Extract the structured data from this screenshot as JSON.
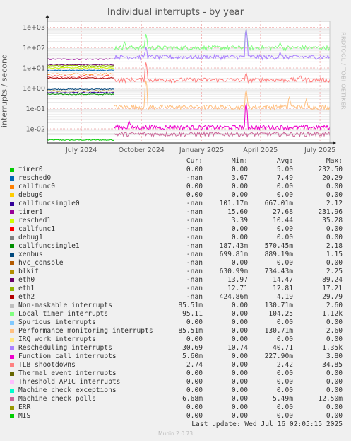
{
  "title": "Individual interrupts - by year",
  "side_label": "RRDTOOL / TOBI OETIKER",
  "footer": {
    "last_update": "Last update: Wed Jul 16 02:05:15 2025",
    "version": "Munin 2.0.73"
  },
  "chart_data": {
    "type": "line",
    "ylabel": "interrupts / second",
    "yscale": "log",
    "ylim": [
      0.002,
      2000
    ],
    "yticks": [
      {
        "value": 0.01,
        "label": "1e-02"
      },
      {
        "value": 0.1,
        "label": "1e-01"
      },
      {
        "value": 1,
        "label": "1e+00"
      },
      {
        "value": 10,
        "label": "1e+01"
      },
      {
        "value": 100,
        "label": "1e+02"
      },
      {
        "value": 1000,
        "label": "1e+03"
      }
    ],
    "xlim": [
      "2024-05-10",
      "2025-07-16"
    ],
    "xticks": [
      {
        "date": "2024-07-01",
        "label": "July 2024"
      },
      {
        "date": "2024-10-01",
        "label": "October 2024"
      },
      {
        "date": "2025-01-01",
        "label": "January 2025"
      },
      {
        "date": "2025-04-01",
        "label": "April 2025"
      },
      {
        "date": "2025-07-01",
        "label": "July 2025"
      }
    ],
    "change_date": "2024-08-20",
    "grid": true,
    "legend_position": "bottom",
    "columns": [
      "Cur:",
      "Min:",
      "Avg:",
      "Max:"
    ],
    "series": [
      {
        "name": "timer0",
        "color": "#00cc00",
        "cur": "0.00",
        "min": "0.00",
        "avg": "5.00",
        "max": "232.50",
        "early": 0.0028,
        "late": null,
        "spikes": []
      },
      {
        "name": "resched0",
        "color": "#0066b3",
        "cur": "-nan",
        "min": "3.67",
        "avg": "7.49",
        "max": "20.29",
        "early": 7.5,
        "late": null,
        "spikes": []
      },
      {
        "name": "callfunc0",
        "color": "#ff8000",
        "cur": "0.00",
        "min": "0.00",
        "avg": "0.00",
        "max": "0.00",
        "early": 5,
        "late": null,
        "spikes": []
      },
      {
        "name": "debug0",
        "color": "#ffcc00",
        "cur": "0.00",
        "min": "0.00",
        "avg": "0.00",
        "max": "0.00",
        "early": null,
        "late": null,
        "spikes": []
      },
      {
        "name": "callfuncsingle0",
        "color": "#330099",
        "cur": "-nan",
        "min": "101.17m",
        "avg": "667.01m",
        "max": "2.12",
        "early": 0.6,
        "late": null,
        "spikes": []
      },
      {
        "name": "timer1",
        "color": "#990099",
        "cur": "-nan",
        "min": "15.60",
        "avg": "27.68",
        "max": "231.96",
        "early": 27,
        "late": null,
        "spikes": []
      },
      {
        "name": "resched1",
        "color": "#ccff00",
        "cur": "-nan",
        "min": "3.39",
        "avg": "10.44",
        "max": "35.28",
        "early": 10,
        "late": null,
        "spikes": []
      },
      {
        "name": "callfunc1",
        "color": "#ff0000",
        "cur": "-nan",
        "min": "0.00",
        "avg": "0.00",
        "max": "0.00",
        "early": 4,
        "late": null,
        "spikes": []
      },
      {
        "name": "debug1",
        "color": "#808080",
        "cur": "-nan",
        "min": "0.00",
        "avg": "0.00",
        "max": "0.00",
        "early": null,
        "late": null,
        "spikes": []
      },
      {
        "name": "callfuncsingle1",
        "color": "#008f00",
        "cur": "-nan",
        "min": "187.43m",
        "avg": "570.45m",
        "max": "2.18",
        "early": 0.5,
        "late": null,
        "spikes": []
      },
      {
        "name": "xenbus",
        "color": "#00487d",
        "cur": "-nan",
        "min": "699.81m",
        "avg": "889.19m",
        "max": "1.15",
        "early": 0.89,
        "late": null,
        "spikes": []
      },
      {
        "name": "hvc_console",
        "color": "#b35a00",
        "cur": "-nan",
        "min": "0.00",
        "avg": "0.00",
        "max": "0.00",
        "early": null,
        "late": null,
        "spikes": []
      },
      {
        "name": "blkif",
        "color": "#b38f00",
        "cur": "-nan",
        "min": "630.99m",
        "avg": "734.43m",
        "max": "2.25",
        "early": 0.73,
        "late": null,
        "spikes": []
      },
      {
        "name": "eth0",
        "color": "#6b006b",
        "cur": "-nan",
        "min": "13.97",
        "avg": "14.47",
        "max": "89.24",
        "early": 14.5,
        "late": null,
        "spikes": []
      },
      {
        "name": "eth1",
        "color": "#8fb300",
        "cur": "-nan",
        "min": "12.71",
        "avg": "12.81",
        "max": "17.21",
        "early": 12.8,
        "late": null,
        "spikes": []
      },
      {
        "name": "eth2",
        "color": "#b30000",
        "cur": "-nan",
        "min": "424.86m",
        "avg": "4.19",
        "max": "29.79",
        "early": 3.2,
        "late": null,
        "spikes": []
      },
      {
        "name": "Non-maskable interrupts",
        "color": "#bebebe",
        "cur": "85.51m",
        "min": "0.00",
        "avg": "130.71m",
        "max": "2.60",
        "early": null,
        "late": null,
        "spikes": []
      },
      {
        "name": "Local timer interrupts",
        "color": "#80ff80",
        "cur": "95.11",
        "min": "0.00",
        "avg": "104.25",
        "max": "1.12k",
        "early": null,
        "late": 100,
        "spikes": [
          [
            "2024-10-08",
            500
          ],
          [
            "2025-03-10",
            900
          ],
          [
            "2025-05-01",
            180
          ],
          [
            "2024-09-05",
            200
          ]
        ]
      },
      {
        "name": "Spurious interrupts",
        "color": "#80c9ff",
        "cur": "0.00",
        "min": "0.00",
        "avg": "0.00",
        "max": "0.00",
        "early": null,
        "late": null,
        "spikes": []
      },
      {
        "name": "Performance monitoring interrupts",
        "color": "#ffc080",
        "cur": "85.51m",
        "min": "0.00",
        "avg": "130.71m",
        "max": "2.60",
        "early": null,
        "late": 0.12,
        "spikes": [
          [
            "2024-10-08",
            2.6
          ],
          [
            "2025-03-10",
            0.9
          ],
          [
            "2025-05-15",
            0.4
          ],
          [
            "2025-06-10",
            0.3
          ]
        ]
      },
      {
        "name": "IRQ work interrupts",
        "color": "#ffe680",
        "cur": "0.00",
        "min": "0.00",
        "avg": "0.00",
        "max": "0.00",
        "early": null,
        "late": null,
        "spikes": []
      },
      {
        "name": "Rescheduling interrupts",
        "color": "#aa80ff",
        "cur": "30.69",
        "min": "10.74",
        "avg": "40.71",
        "max": "1.35k",
        "early": null,
        "late": 35,
        "spikes": [
          [
            "2024-10-08",
            110
          ],
          [
            "2025-03-10",
            900
          ],
          [
            "2025-05-01",
            60
          ]
        ]
      },
      {
        "name": "Function call interrupts",
        "color": "#ee00cc",
        "cur": "5.60m",
        "min": "0.00",
        "avg": "227.90m",
        "max": "3.80",
        "early": null,
        "late": 0.012,
        "spikes": [
          [
            "2025-03-10",
            0.2
          ],
          [
            "2024-09-12",
            0.025
          ]
        ]
      },
      {
        "name": "TLB shootdowns",
        "color": "#ff8080",
        "cur": "2.74",
        "min": "0.00",
        "avg": "2.42",
        "max": "34.85",
        "early": null,
        "late": 2.6,
        "spikes": [
          [
            "2024-10-08",
            20
          ],
          [
            "2025-03-10",
            6
          ],
          [
            "2025-06-01",
            4.5
          ]
        ]
      },
      {
        "name": "Thermal event interrupts",
        "color": "#666600",
        "cur": "0.00",
        "min": "0.00",
        "avg": "0.00",
        "max": "0.00",
        "early": null,
        "late": null,
        "spikes": []
      },
      {
        "name": "Threshold APIC interrupts",
        "color": "#ffbfff",
        "cur": "0.00",
        "min": "0.00",
        "avg": "0.00",
        "max": "0.00",
        "early": null,
        "late": null,
        "spikes": []
      },
      {
        "name": "Machine check exceptions",
        "color": "#00ffcc",
        "cur": "0.00",
        "min": "0.00",
        "avg": "0.00",
        "max": "0.00",
        "early": null,
        "late": null,
        "spikes": []
      },
      {
        "name": "Machine check polls",
        "color": "#cc6699",
        "cur": "6.68m",
        "min": "0.00",
        "avg": "5.49m",
        "max": "12.50m",
        "early": null,
        "late": 0.0055,
        "spikes": []
      },
      {
        "name": "ERR",
        "color": "#999900",
        "cur": "0.00",
        "min": "0.00",
        "avg": "0.00",
        "max": "0.00",
        "early": null,
        "late": null,
        "spikes": []
      },
      {
        "name": "MIS",
        "color": "#00cc00",
        "cur": "0.00",
        "min": "0.00",
        "avg": "0.00",
        "max": "0.00",
        "early": null,
        "late": null,
        "spikes": []
      }
    ]
  }
}
